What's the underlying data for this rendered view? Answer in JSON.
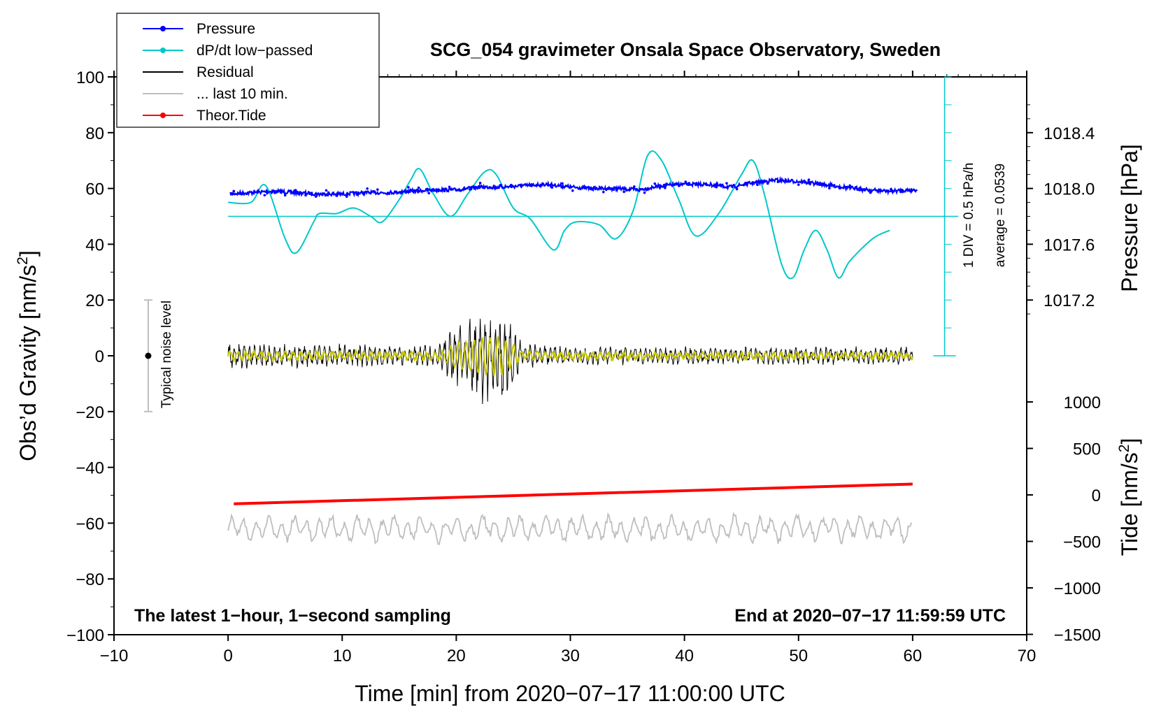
{
  "chart_data": {
    "type": "line",
    "title": "SCG_054 gravimeter Onsala Space Observatory, Sweden",
    "xlabel": "Time [min] from 2020−07−17 11:00:00 UTC",
    "ylabel_left": "Obs’d Gravity [nm/s",
    "ylabel_left_sup": "2",
    "ylabel_left_end": "]",
    "ylabel_right_pressure": "Pressure [hPa]",
    "ylabel_right_tide": "Tide [nm/s",
    "ylabel_right_tide_sup": "2",
    "ylabel_right_tide_end": "]",
    "xlim": [
      -10,
      70
    ],
    "ylim_left": [
      -100,
      100
    ],
    "x_ticks": [
      "−10",
      "0",
      "10",
      "20",
      "30",
      "40",
      "50",
      "60",
      "70"
    ],
    "y_ticks_left": [
      "100",
      "80",
      "60",
      "40",
      "20",
      "0",
      "−20",
      "−40",
      "−60",
      "−80",
      "−100"
    ],
    "pressure_ticks": [
      "1018.4",
      "1018.0",
      "1017.6",
      "1017.2"
    ],
    "pressure_values": [
      1018.4,
      1018.0,
      1017.6,
      1017.2
    ],
    "tide_ticks": [
      "1000",
      "500",
      "0",
      "−500",
      "−1000",
      "−1500"
    ],
    "tide_values": [
      1000,
      500,
      0,
      -500,
      -1000,
      -1500
    ],
    "legend": [
      {
        "label": "Pressure",
        "color": "#0000ff",
        "marker": true
      },
      {
        "label": "dP/dt low−passed",
        "color": "#00c8c8",
        "marker": true
      },
      {
        "label": "Residual",
        "color": "#000000",
        "marker": false
      },
      {
        "label": "... last 10 min.",
        "color": "#bebebe",
        "marker": false
      },
      {
        "label": "Theor.Tide",
        "color": "#ff0000",
        "marker": true
      }
    ],
    "annotations": {
      "noise": "Typical noise level",
      "div": "1 DIV = 0.5 hPa/h",
      "average": "average = 0.0539",
      "bottom_left": "The latest 1−hour, 1−second sampling",
      "bottom_right": "End at 2020−07−17 11:59:59 UTC"
    },
    "noise_bar": {
      "x": -7,
      "ymin": -20,
      "ymax": 20,
      "center": 0
    },
    "series": [
      {
        "name": "Pressure",
        "color": "#0000ff",
        "x": [
          0,
          2,
          4,
          6,
          8,
          10,
          12,
          14,
          16,
          18,
          20,
          22,
          24,
          26,
          28,
          30,
          32,
          34,
          36,
          38,
          40,
          42,
          44,
          46,
          48,
          50,
          52,
          54,
          56,
          58,
          60
        ],
        "y": [
          1017.96,
          1017.97,
          1017.98,
          1017.97,
          1017.96,
          1017.96,
          1017.97,
          1017.97,
          1017.98,
          1017.99,
          1017.99,
          1018.01,
          1018.01,
          1018.02,
          1018.03,
          1018.01,
          1018.0,
          1018.0,
          1017.99,
          1018.02,
          1018.03,
          1018.03,
          1018.01,
          1018.04,
          1018.06,
          1018.05,
          1018.03,
          1018.01,
          1017.99,
          1017.98,
          1017.99
        ]
      },
      {
        "name": "dP/dt low−passed",
        "color": "#00c8c8",
        "baseline": 50,
        "x": [
          0,
          2,
          3.3,
          5,
          6,
          7.5,
          8,
          9.5,
          11,
          12.5,
          13.5,
          15,
          16,
          16.8,
          18,
          19.5,
          21,
          22.5,
          23.5,
          25,
          26.5,
          28.5,
          29.5,
          30.5,
          32.5,
          34,
          35.5,
          36.8,
          38,
          39.5,
          41,
          43,
          45,
          46,
          47,
          48.5,
          49.5,
          50.5,
          51.5,
          52.5,
          53.5,
          54.5,
          56.5,
          58
        ],
        "y": [
          55,
          55,
          61,
          42,
          37,
          48,
          51,
          51,
          53,
          50,
          48,
          56,
          63,
          67,
          58,
          50,
          58,
          66,
          65,
          53,
          49,
          38,
          45,
          48,
          47,
          42,
          52,
          72,
          70,
          56,
          43,
          51,
          65,
          70,
          58,
          33,
          28,
          38,
          45,
          38,
          28,
          34,
          42,
          45
        ]
      },
      {
        "name": "Theor.Tide",
        "color": "#ff0000",
        "x": [
          0.5,
          60
        ],
        "y": [
          -96,
          117
        ]
      }
    ],
    "residual_envelope": {
      "x": [
        0,
        5,
        10,
        15,
        18.5,
        20,
        21.5,
        23,
        24,
        25,
        26,
        30,
        40,
        50,
        60
      ],
      "amp": [
        4,
        4,
        4,
        3.5,
        4,
        11,
        14,
        17,
        16,
        9,
        4,
        3,
        3,
        3,
        3
      ]
    },
    "last10_offset": -62
  }
}
